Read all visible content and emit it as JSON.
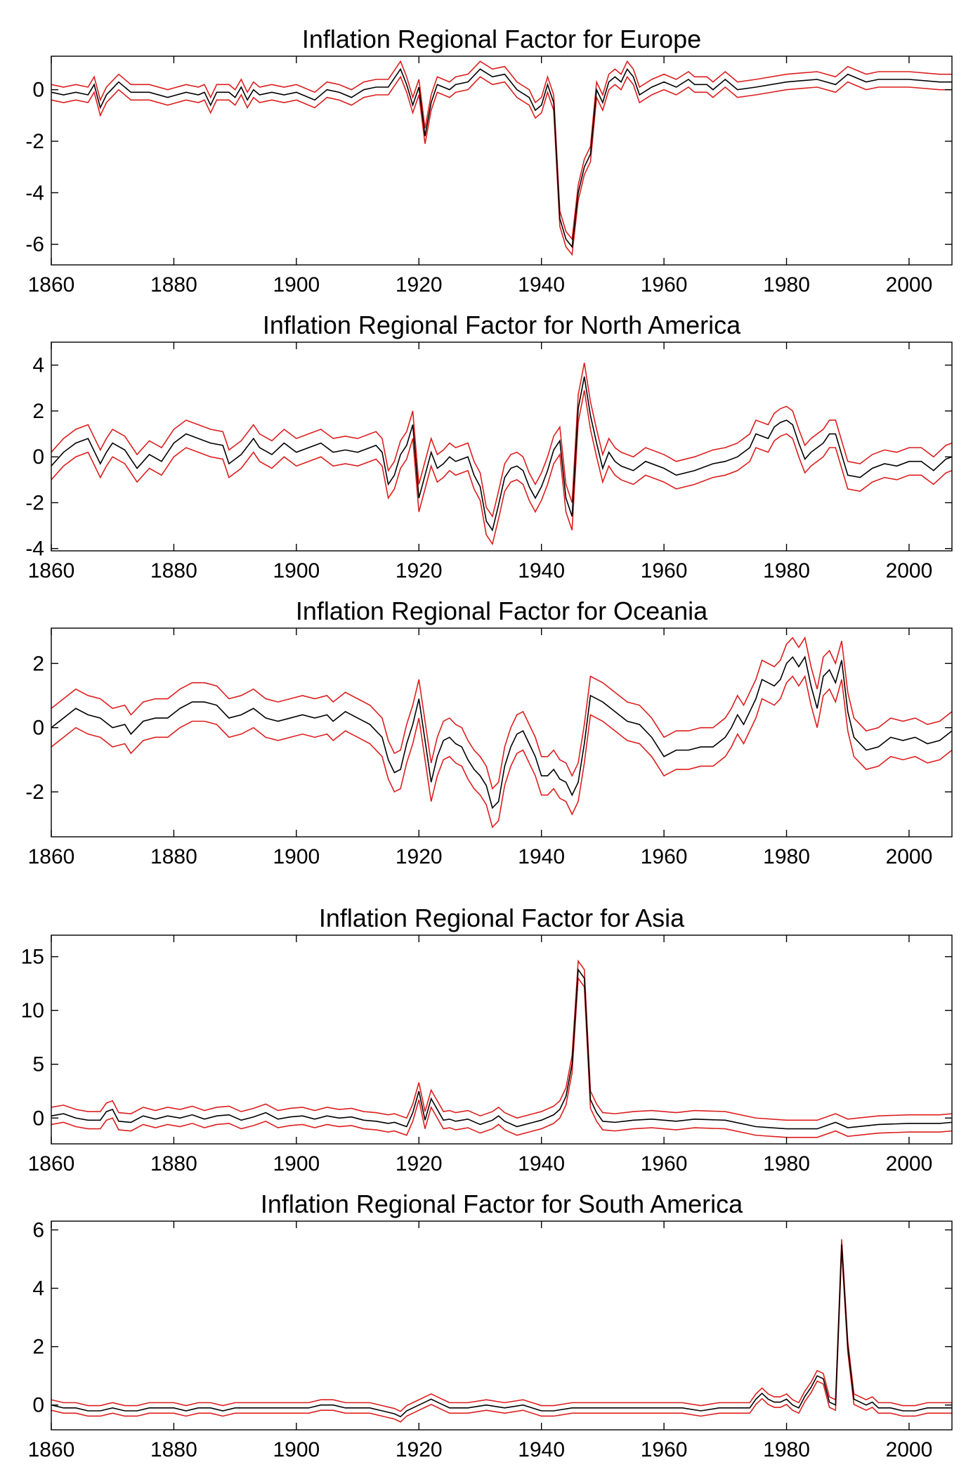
{
  "colors": {
    "mean": "#000000",
    "band": "#dc1e1e",
    "axes": "#000000"
  },
  "chart_data": [
    {
      "type": "line",
      "title": "Inflation Regional Factor for Europe",
      "xlabel": "",
      "ylabel": "",
      "xlim": [
        1860,
        2007
      ],
      "ylim": [
        -6.8,
        1.3
      ],
      "xticks": [
        1860,
        1880,
        1900,
        1920,
        1940,
        1960,
        1980,
        2000
      ],
      "yticks": [
        -6,
        -4,
        -2,
        0
      ],
      "grid": false,
      "band_width": 0.3,
      "x": [
        1860,
        1862,
        1864,
        1866,
        1867,
        1868,
        1869,
        1871,
        1873,
        1876,
        1879,
        1882,
        1884,
        1885,
        1886,
        1887,
        1889,
        1890,
        1891,
        1892,
        1893,
        1894,
        1896,
        1898,
        1900,
        1903,
        1905,
        1907,
        1909,
        1911,
        1913,
        1915,
        1917,
        1918,
        1919,
        1920,
        1921,
        1922,
        1923,
        1925,
        1926,
        1928,
        1930,
        1932,
        1934,
        1936,
        1938,
        1939,
        1940,
        1941,
        1942,
        1943,
        1944,
        1945,
        1946,
        1947,
        1948,
        1949,
        1950,
        1951,
        1952,
        1953,
        1954,
        1955,
        1956,
        1958,
        1960,
        1962,
        1964,
        1965,
        1967,
        1968,
        1970,
        1972,
        1975,
        1980,
        1985,
        1988,
        1990,
        1991,
        1993,
        1995,
        2000,
        2005,
        2007
      ],
      "series": [
        {
          "role": "mean",
          "values": [
            -0.1,
            -0.2,
            -0.1,
            -0.2,
            0.2,
            -0.7,
            -0.2,
            0.3,
            -0.1,
            -0.1,
            -0.3,
            -0.1,
            -0.2,
            -0.1,
            -0.6,
            -0.1,
            -0.1,
            -0.3,
            0.1,
            -0.4,
            0.0,
            -0.2,
            -0.1,
            -0.2,
            -0.1,
            -0.4,
            0.0,
            -0.1,
            -0.3,
            0.0,
            0.1,
            0.1,
            0.8,
            0.2,
            -0.6,
            0.1,
            -1.8,
            -0.5,
            0.2,
            0.0,
            0.2,
            0.3,
            0.8,
            0.5,
            0.6,
            0.0,
            -0.3,
            -0.8,
            -0.6,
            0.2,
            -0.5,
            -5.0,
            -5.8,
            -6.1,
            -4.0,
            -3.0,
            -2.5,
            0.0,
            -0.5,
            0.3,
            0.5,
            0.3,
            0.8,
            0.5,
            -0.2,
            0.1,
            0.3,
            0.1,
            0.4,
            0.2,
            0.2,
            0.0,
            0.4,
            0.0,
            0.1,
            0.3,
            0.4,
            0.2,
            0.6,
            0.5,
            0.3,
            0.4,
            0.4,
            0.3,
            0.3
          ]
        }
      ]
    },
    {
      "type": "line",
      "title": "Inflation Regional Factor for North America",
      "xlabel": "",
      "ylabel": "",
      "xlim": [
        1860,
        2007
      ],
      "ylim": [
        -4.1,
        5.0
      ],
      "xticks": [
        1860,
        1880,
        1900,
        1920,
        1940,
        1960,
        1980,
        2000
      ],
      "yticks": [
        -4,
        -2,
        0,
        2,
        4
      ],
      "grid": false,
      "band_width": 0.6,
      "x": [
        1860,
        1862,
        1864,
        1866,
        1868,
        1869,
        1870,
        1872,
        1874,
        1876,
        1878,
        1880,
        1882,
        1884,
        1886,
        1888,
        1889,
        1891,
        1893,
        1894,
        1896,
        1898,
        1900,
        1902,
        1904,
        1906,
        1908,
        1910,
        1912,
        1913,
        1914,
        1915,
        1916,
        1917,
        1918,
        1919,
        1920,
        1921,
        1922,
        1923,
        1924,
        1925,
        1926,
        1928,
        1929,
        1930,
        1931,
        1932,
        1933,
        1934,
        1935,
        1936,
        1937,
        1938,
        1939,
        1940,
        1941,
        1942,
        1943,
        1944,
        1945,
        1946,
        1947,
        1948,
        1949,
        1950,
        1951,
        1952,
        1953,
        1955,
        1957,
        1960,
        1962,
        1965,
        1968,
        1970,
        1972,
        1974,
        1975,
        1977,
        1978,
        1979,
        1980,
        1981,
        1982,
        1983,
        1984,
        1986,
        1987,
        1988,
        1990,
        1992,
        1994,
        1996,
        1998,
        2000,
        2002,
        2004,
        2006,
        2007
      ],
      "series": [
        {
          "role": "mean",
          "values": [
            -0.4,
            0.2,
            0.6,
            0.8,
            -0.3,
            0.2,
            0.6,
            0.3,
            -0.5,
            0.1,
            -0.2,
            0.6,
            1.0,
            0.8,
            0.6,
            0.5,
            -0.3,
            0.1,
            0.8,
            0.4,
            0.1,
            0.6,
            0.2,
            0.4,
            0.6,
            0.2,
            0.3,
            0.2,
            0.4,
            0.5,
            0.2,
            -1.2,
            -0.8,
            0.1,
            0.5,
            1.4,
            -1.8,
            -0.8,
            0.2,
            -0.5,
            -0.3,
            0.0,
            -0.2,
            0.0,
            -0.8,
            -1.3,
            -2.8,
            -3.2,
            -2.1,
            -0.9,
            -0.5,
            -0.4,
            -0.6,
            -1.3,
            -1.8,
            -1.3,
            -0.6,
            0.3,
            0.7,
            -1.8,
            -2.6,
            2.1,
            3.5,
            1.8,
            0.6,
            -0.5,
            0.2,
            -0.2,
            -0.4,
            -0.6,
            -0.2,
            -0.5,
            -0.8,
            -0.6,
            -0.3,
            -0.2,
            0.0,
            0.4,
            1.0,
            0.8,
            1.3,
            1.5,
            1.6,
            1.4,
            0.6,
            -0.1,
            0.2,
            0.6,
            1.0,
            1.0,
            -0.8,
            -0.9,
            -0.5,
            -0.3,
            -0.4,
            -0.2,
            -0.2,
            -0.6,
            -0.1,
            0.0
          ]
        }
      ]
    },
    {
      "type": "line",
      "title": "Inflation Regional Factor for Oceania",
      "xlabel": "",
      "ylabel": "",
      "xlim": [
        1860,
        2007
      ],
      "ylim": [
        -3.4,
        3.1
      ],
      "xticks": [
        1860,
        1880,
        1900,
        1920,
        1940,
        1960,
        1980,
        2000
      ],
      "yticks": [
        -2,
        0,
        2
      ],
      "grid": false,
      "band_width": 0.6,
      "x": [
        1860,
        1862,
        1864,
        1866,
        1868,
        1870,
        1872,
        1873,
        1875,
        1877,
        1879,
        1881,
        1883,
        1885,
        1887,
        1889,
        1891,
        1893,
        1895,
        1897,
        1899,
        1901,
        1903,
        1905,
        1906,
        1908,
        1910,
        1912,
        1914,
        1915,
        1916,
        1917,
        1918,
        1919,
        1920,
        1921,
        1922,
        1923,
        1924,
        1925,
        1926,
        1927,
        1928,
        1929,
        1930,
        1931,
        1932,
        1933,
        1934,
        1935,
        1936,
        1937,
        1938,
        1939,
        1940,
        1941,
        1942,
        1943,
        1944,
        1945,
        1946,
        1947,
        1948,
        1950,
        1952,
        1954,
        1956,
        1958,
        1959,
        1960,
        1962,
        1964,
        1966,
        1968,
        1970,
        1971,
        1972,
        1973,
        1974,
        1975,
        1976,
        1977,
        1978,
        1979,
        1980,
        1981,
        1982,
        1983,
        1984,
        1985,
        1986,
        1987,
        1988,
        1989,
        1990,
        1991,
        1993,
        1995,
        1997,
        1999,
        2001,
        2003,
        2005,
        2007
      ],
      "series": [
        {
          "role": "mean",
          "values": [
            0.0,
            0.3,
            0.6,
            0.4,
            0.3,
            0.0,
            0.1,
            -0.2,
            0.2,
            0.3,
            0.3,
            0.6,
            0.8,
            0.8,
            0.7,
            0.3,
            0.4,
            0.6,
            0.3,
            0.2,
            0.3,
            0.4,
            0.3,
            0.4,
            0.2,
            0.5,
            0.3,
            0.1,
            -0.3,
            -1.0,
            -1.4,
            -1.3,
            -0.5,
            0.1,
            0.9,
            -0.4,
            -1.7,
            -0.9,
            -0.4,
            -0.3,
            -0.5,
            -0.6,
            -1.0,
            -1.3,
            -1.5,
            -1.8,
            -2.5,
            -2.3,
            -1.2,
            -0.6,
            -0.2,
            -0.1,
            -0.5,
            -0.9,
            -1.5,
            -1.5,
            -1.3,
            -1.6,
            -1.7,
            -2.1,
            -1.7,
            -0.5,
            1.0,
            0.8,
            0.5,
            0.2,
            0.1,
            -0.3,
            -0.6,
            -0.9,
            -0.7,
            -0.7,
            -0.6,
            -0.6,
            -0.3,
            0.0,
            0.4,
            0.1,
            0.5,
            0.9,
            1.5,
            1.4,
            1.3,
            1.5,
            2.0,
            2.2,
            1.9,
            2.2,
            1.3,
            0.6,
            1.6,
            1.8,
            1.4,
            2.1,
            0.5,
            -0.3,
            -0.7,
            -0.6,
            -0.3,
            -0.4,
            -0.3,
            -0.5,
            -0.4,
            -0.1
          ]
        }
      ]
    },
    {
      "type": "line",
      "title": "Inflation Regional Factor for Asia",
      "xlabel": "",
      "ylabel": "",
      "xlim": [
        1860,
        2007
      ],
      "ylim": [
        -2.4,
        17.0
      ],
      "xticks": [
        1860,
        1880,
        1900,
        1920,
        1940,
        1960,
        1980,
        2000
      ],
      "yticks": [
        0,
        5,
        10,
        15
      ],
      "grid": false,
      "band_width": 0.8,
      "x": [
        1860,
        1862,
        1864,
        1866,
        1868,
        1869,
        1870,
        1871,
        1873,
        1875,
        1877,
        1879,
        1881,
        1883,
        1885,
        1887,
        1889,
        1891,
        1893,
        1895,
        1897,
        1899,
        1901,
        1903,
        1905,
        1907,
        1909,
        1911,
        1913,
        1915,
        1916,
        1917,
        1918,
        1919,
        1920,
        1921,
        1922,
        1923,
        1924,
        1925,
        1926,
        1928,
        1930,
        1932,
        1933,
        1934,
        1936,
        1938,
        1940,
        1942,
        1943,
        1944,
        1945,
        1946,
        1947,
        1948,
        1949,
        1950,
        1952,
        1955,
        1958,
        1962,
        1965,
        1970,
        1975,
        1980,
        1985,
        1988,
        1990,
        1995,
        2000,
        2005,
        2007
      ],
      "series": [
        {
          "role": "mean",
          "values": [
            0.2,
            0.4,
            0.0,
            -0.2,
            -0.2,
            0.6,
            0.8,
            -0.3,
            -0.4,
            0.2,
            -0.1,
            0.2,
            0.0,
            0.3,
            -0.1,
            0.2,
            0.3,
            -0.2,
            0.1,
            0.5,
            -0.1,
            0.1,
            0.2,
            -0.1,
            0.2,
            0.0,
            0.1,
            -0.2,
            -0.3,
            -0.5,
            -0.4,
            -0.6,
            -0.8,
            0.5,
            2.5,
            -0.2,
            1.8,
            0.8,
            -0.2,
            -0.1,
            -0.3,
            -0.1,
            -0.6,
            -0.2,
            0.2,
            -0.3,
            -0.8,
            -0.5,
            -0.2,
            0.3,
            0.8,
            2.0,
            5.0,
            13.8,
            13.0,
            1.7,
            0.5,
            -0.3,
            -0.4,
            -0.2,
            -0.1,
            -0.3,
            -0.1,
            -0.2,
            -0.8,
            -1.0,
            -1.0,
            -0.4,
            -0.9,
            -0.6,
            -0.5,
            -0.5,
            -0.4
          ]
        }
      ]
    },
    {
      "type": "line",
      "title": "Inflation Regional Factor for South America",
      "xlabel": "",
      "ylabel": "",
      "xlim": [
        1860,
        2007
      ],
      "ylim": [
        -0.85,
        6.3
      ],
      "xticks": [
        1860,
        1880,
        1900,
        1920,
        1940,
        1960,
        1980,
        2000
      ],
      "yticks": [
        0,
        2,
        4,
        6
      ],
      "grid": false,
      "band_width": 0.18,
      "x": [
        1860,
        1862,
        1864,
        1866,
        1868,
        1870,
        1872,
        1874,
        1876,
        1878,
        1880,
        1882,
        1884,
        1886,
        1888,
        1890,
        1892,
        1894,
        1896,
        1898,
        1900,
        1902,
        1904,
        1906,
        1908,
        1910,
        1912,
        1914,
        1916,
        1917,
        1918,
        1920,
        1921,
        1922,
        1923,
        1924,
        1925,
        1928,
        1931,
        1934,
        1937,
        1940,
        1942,
        1945,
        1948,
        1951,
        1954,
        1957,
        1960,
        1963,
        1966,
        1969,
        1972,
        1974,
        1975,
        1976,
        1977,
        1978,
        1979,
        1980,
        1981,
        1982,
        1983,
        1984,
        1985,
        1986,
        1987,
        1988,
        1989,
        1990,
        1991,
        1992,
        1993,
        1994,
        1995,
        1996,
        1997,
        1999,
        2001,
        2003,
        2005,
        2007
      ],
      "series": [
        {
          "role": "mean",
          "values": [
            0.0,
            -0.1,
            -0.1,
            -0.2,
            -0.2,
            -0.1,
            -0.2,
            -0.2,
            -0.1,
            -0.1,
            -0.1,
            -0.2,
            -0.1,
            -0.1,
            -0.2,
            -0.1,
            -0.1,
            -0.1,
            -0.1,
            -0.1,
            -0.1,
            -0.1,
            0.0,
            0.0,
            -0.1,
            -0.1,
            -0.1,
            -0.2,
            -0.3,
            -0.4,
            -0.2,
            0.0,
            0.1,
            0.2,
            0.1,
            0.0,
            -0.1,
            -0.1,
            0.0,
            -0.1,
            0.0,
            -0.2,
            -0.2,
            -0.1,
            -0.1,
            -0.1,
            -0.1,
            -0.1,
            -0.1,
            -0.1,
            -0.2,
            -0.1,
            -0.1,
            -0.1,
            0.2,
            0.4,
            0.2,
            0.1,
            0.1,
            0.2,
            0.0,
            -0.1,
            0.3,
            0.6,
            1.0,
            0.9,
            0.1,
            0.0,
            5.5,
            2.0,
            0.2,
            0.1,
            0.0,
            0.1,
            -0.1,
            -0.1,
            -0.1,
            -0.2,
            -0.2,
            -0.1,
            -0.1,
            -0.1
          ]
        }
      ]
    }
  ]
}
